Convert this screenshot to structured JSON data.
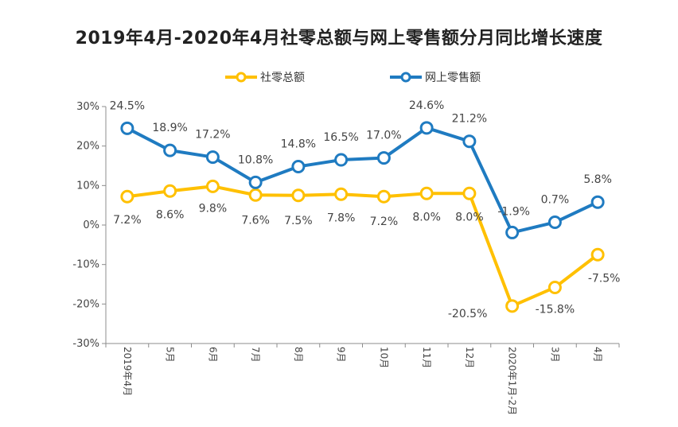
{
  "chart_data": {
    "type": "line",
    "title": "2019年4月-2020年4月社零总额与网上零售额分月同比增长速度",
    "xlabel": "",
    "ylabel": "",
    "categories": [
      "2019年4月",
      "5月",
      "6月",
      "7月",
      "8月",
      "9月",
      "10月",
      "11月",
      "12月",
      "2020年1月-2月",
      "3月",
      "4月"
    ],
    "ylim": [
      -30,
      30
    ],
    "yticks": [
      "-30%",
      "-20%",
      "-10%",
      "0%",
      "10%",
      "20%",
      "30%"
    ],
    "legend_position": "top-center",
    "grid": false,
    "series": [
      {
        "name": "社零总额",
        "color": "#FFC000",
        "values": [
          7.2,
          8.6,
          9.8,
          7.6,
          7.5,
          7.8,
          7.2,
          8.0,
          8.0,
          -20.5,
          -15.8,
          -7.5
        ],
        "labels": [
          "7.2%",
          "8.6%",
          "9.8%",
          "7.6%",
          "7.5%",
          "7.8%",
          "7.2%",
          "8.0%",
          "8.0%",
          "-20.5%",
          "-15.8%",
          "-7.5%"
        ]
      },
      {
        "name": "网上零售额",
        "color": "#1F7BC1",
        "values": [
          24.5,
          18.9,
          17.2,
          10.8,
          14.8,
          16.5,
          17.0,
          24.6,
          21.2,
          -1.9,
          0.7,
          5.8
        ],
        "labels": [
          "24.5%",
          "18.9%",
          "17.2%",
          "10.8%",
          "14.8%",
          "16.5%",
          "17.0%",
          "24.6%",
          "21.2%",
          "-1.9%",
          "0.7%",
          "5.8%"
        ]
      }
    ]
  }
}
